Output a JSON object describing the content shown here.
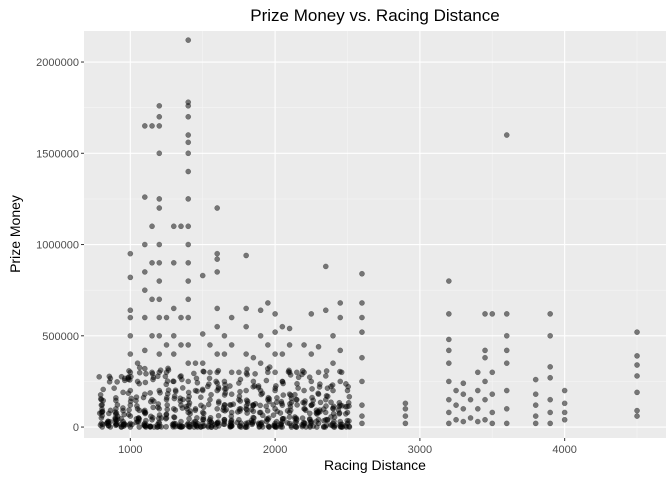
{
  "chart_data": {
    "type": "scatter",
    "title": "Prize Money vs. Racing Distance",
    "xlabel": "Racing Distance",
    "ylabel": "Prize Money",
    "xlim": [
      680,
      4700
    ],
    "ylim": [
      -60000,
      2170000
    ],
    "x_ticks": [
      1000,
      2000,
      3000,
      4000
    ],
    "x_tick_labels": [
      "1000",
      "2000",
      "3000",
      "4000"
    ],
    "y_ticks": [
      0,
      500000,
      1000000,
      1500000,
      2000000
    ],
    "y_tick_labels": [
      "0",
      "500000",
      "1000000",
      "1500000",
      "2000000"
    ],
    "grid": true,
    "background": "#ebebeb",
    "point_color": "#000000",
    "point_opacity": 0.5,
    "points": [
      [
        800,
        20000
      ],
      [
        800,
        50000
      ],
      [
        800,
        80000
      ],
      [
        800,
        120000
      ],
      [
        800,
        150000
      ],
      [
        900,
        10000
      ],
      [
        900,
        40000
      ],
      [
        900,
        70000
      ],
      [
        900,
        100000
      ],
      [
        900,
        160000
      ],
      [
        950,
        30000
      ],
      [
        950,
        90000
      ],
      [
        950,
        190000
      ],
      [
        1000,
        20000
      ],
      [
        1000,
        60000
      ],
      [
        1000,
        120000
      ],
      [
        1000,
        200000
      ],
      [
        1000,
        300000
      ],
      [
        1000,
        400000
      ],
      [
        1000,
        500000
      ],
      [
        1000,
        600000
      ],
      [
        1000,
        640000
      ],
      [
        1000,
        820000
      ],
      [
        1000,
        950000
      ],
      [
        1050,
        30000
      ],
      [
        1050,
        100000
      ],
      [
        1050,
        250000
      ],
      [
        1050,
        350000
      ],
      [
        1100,
        20000
      ],
      [
        1100,
        80000
      ],
      [
        1100,
        180000
      ],
      [
        1100,
        320000
      ],
      [
        1100,
        420000
      ],
      [
        1100,
        600000
      ],
      [
        1100,
        750000
      ],
      [
        1100,
        850000
      ],
      [
        1100,
        1000000
      ],
      [
        1100,
        1260000
      ],
      [
        1100,
        1650000
      ],
      [
        1150,
        40000
      ],
      [
        1150,
        150000
      ],
      [
        1150,
        300000
      ],
      [
        1150,
        500000
      ],
      [
        1150,
        700000
      ],
      [
        1150,
        900000
      ],
      [
        1150,
        1100000
      ],
      [
        1150,
        1650000
      ],
      [
        1200,
        20000
      ],
      [
        1200,
        100000
      ],
      [
        1200,
        200000
      ],
      [
        1200,
        300000
      ],
      [
        1200,
        400000
      ],
      [
        1200,
        500000
      ],
      [
        1200,
        600000
      ],
      [
        1200,
        700000
      ],
      [
        1200,
        800000
      ],
      [
        1200,
        900000
      ],
      [
        1200,
        1000000
      ],
      [
        1200,
        1200000
      ],
      [
        1200,
        1250000
      ],
      [
        1200,
        1500000
      ],
      [
        1200,
        1650000
      ],
      [
        1200,
        1700000
      ],
      [
        1200,
        1760000
      ],
      [
        1250,
        50000
      ],
      [
        1250,
        150000
      ],
      [
        1250,
        300000
      ],
      [
        1250,
        450000
      ],
      [
        1250,
        600000
      ],
      [
        1300,
        20000
      ],
      [
        1300,
        100000
      ],
      [
        1300,
        250000
      ],
      [
        1300,
        400000
      ],
      [
        1300,
        500000
      ],
      [
        1300,
        650000
      ],
      [
        1300,
        900000
      ],
      [
        1300,
        1100000
      ],
      [
        1350,
        30000
      ],
      [
        1350,
        120000
      ],
      [
        1350,
        280000
      ],
      [
        1350,
        450000
      ],
      [
        1350,
        600000
      ],
      [
        1350,
        1100000
      ],
      [
        1400,
        20000
      ],
      [
        1400,
        80000
      ],
      [
        1400,
        150000
      ],
      [
        1400,
        250000
      ],
      [
        1400,
        350000
      ],
      [
        1400,
        450000
      ],
      [
        1400,
        600000
      ],
      [
        1400,
        700000
      ],
      [
        1400,
        800000
      ],
      [
        1400,
        900000
      ],
      [
        1400,
        1000000
      ],
      [
        1400,
        1100000
      ],
      [
        1400,
        1250000
      ],
      [
        1400,
        1400000
      ],
      [
        1400,
        1500000
      ],
      [
        1400,
        1560000
      ],
      [
        1400,
        1600000
      ],
      [
        1400,
        1700000
      ],
      [
        1400,
        1760000
      ],
      [
        1400,
        1780000
      ],
      [
        1400,
        2120000
      ],
      [
        1450,
        30000
      ],
      [
        1450,
        100000
      ],
      [
        1450,
        200000
      ],
      [
        1450,
        350000
      ],
      [
        1500,
        20000
      ],
      [
        1500,
        80000
      ],
      [
        1500,
        200000
      ],
      [
        1500,
        350000
      ],
      [
        1500,
        510000
      ],
      [
        1500,
        830000
      ],
      [
        1550,
        40000
      ],
      [
        1550,
        150000
      ],
      [
        1550,
        300000
      ],
      [
        1550,
        450000
      ],
      [
        1600,
        20000
      ],
      [
        1600,
        100000
      ],
      [
        1600,
        200000
      ],
      [
        1600,
        300000
      ],
      [
        1600,
        400000
      ],
      [
        1600,
        550000
      ],
      [
        1600,
        650000
      ],
      [
        1600,
        850000
      ],
      [
        1600,
        920000
      ],
      [
        1600,
        950000
      ],
      [
        1600,
        1200000
      ],
      [
        1650,
        30000
      ],
      [
        1650,
        120000
      ],
      [
        1650,
        250000
      ],
      [
        1650,
        400000
      ],
      [
        1650,
        500000
      ],
      [
        1700,
        20000
      ],
      [
        1700,
        80000
      ],
      [
        1700,
        180000
      ],
      [
        1700,
        300000
      ],
      [
        1700,
        450000
      ],
      [
        1700,
        600000
      ],
      [
        1750,
        40000
      ],
      [
        1750,
        150000
      ],
      [
        1750,
        300000
      ],
      [
        1800,
        20000
      ],
      [
        1800,
        100000
      ],
      [
        1800,
        200000
      ],
      [
        1800,
        400000
      ],
      [
        1800,
        550000
      ],
      [
        1800,
        650000
      ],
      [
        1800,
        940000
      ],
      [
        1850,
        30000
      ],
      [
        1850,
        120000
      ],
      [
        1850,
        250000
      ],
      [
        1850,
        380000
      ],
      [
        1900,
        20000
      ],
      [
        1900,
        80000
      ],
      [
        1900,
        200000
      ],
      [
        1900,
        350000
      ],
      [
        1900,
        500000
      ],
      [
        1900,
        640000
      ],
      [
        1950,
        40000
      ],
      [
        1950,
        150000
      ],
      [
        1950,
        300000
      ],
      [
        1950,
        450000
      ],
      [
        1950,
        680000
      ],
      [
        2000,
        20000
      ],
      [
        2000,
        100000
      ],
      [
        2000,
        200000
      ],
      [
        2000,
        300000
      ],
      [
        2000,
        400000
      ],
      [
        2000,
        520000
      ],
      [
        2000,
        620000
      ],
      [
        2050,
        30000
      ],
      [
        2050,
        120000
      ],
      [
        2050,
        250000
      ],
      [
        2050,
        400000
      ],
      [
        2050,
        550000
      ],
      [
        2100,
        20000
      ],
      [
        2100,
        80000
      ],
      [
        2100,
        180000
      ],
      [
        2100,
        300000
      ],
      [
        2100,
        450000
      ],
      [
        2100,
        540000
      ],
      [
        2150,
        40000
      ],
      [
        2150,
        150000
      ],
      [
        2150,
        300000
      ],
      [
        2200,
        20000
      ],
      [
        2200,
        100000
      ],
      [
        2200,
        200000
      ],
      [
        2200,
        300000
      ],
      [
        2200,
        450000
      ],
      [
        2250,
        30000
      ],
      [
        2250,
        120000
      ],
      [
        2250,
        250000
      ],
      [
        2250,
        400000
      ],
      [
        2250,
        620000
      ],
      [
        2300,
        20000
      ],
      [
        2300,
        80000
      ],
      [
        2300,
        180000
      ],
      [
        2300,
        300000
      ],
      [
        2300,
        440000
      ],
      [
        2350,
        40000
      ],
      [
        2350,
        150000
      ],
      [
        2350,
        280000
      ],
      [
        2350,
        640000
      ],
      [
        2350,
        880000
      ],
      [
        2400,
        20000
      ],
      [
        2400,
        100000
      ],
      [
        2400,
        200000
      ],
      [
        2400,
        350000
      ],
      [
        2400,
        500000
      ],
      [
        2450,
        30000
      ],
      [
        2450,
        120000
      ],
      [
        2450,
        250000
      ],
      [
        2450,
        420000
      ],
      [
        2450,
        600000
      ],
      [
        2450,
        680000
      ],
      [
        2500,
        20000
      ],
      [
        2500,
        80000
      ],
      [
        2500,
        200000
      ],
      [
        2600,
        20000
      ],
      [
        2600,
        60000
      ],
      [
        2600,
        120000
      ],
      [
        2600,
        250000
      ],
      [
        2600,
        380000
      ],
      [
        2600,
        520000
      ],
      [
        2600,
        600000
      ],
      [
        2600,
        680000
      ],
      [
        2600,
        840000
      ],
      [
        2900,
        20000
      ],
      [
        2900,
        60000
      ],
      [
        2900,
        100000
      ],
      [
        2900,
        130000
      ],
      [
        3200,
        20000
      ],
      [
        3200,
        80000
      ],
      [
        3200,
        150000
      ],
      [
        3200,
        250000
      ],
      [
        3200,
        350000
      ],
      [
        3200,
        420000
      ],
      [
        3200,
        480000
      ],
      [
        3200,
        620000
      ],
      [
        3200,
        800000
      ],
      [
        3250,
        40000
      ],
      [
        3250,
        120000
      ],
      [
        3250,
        200000
      ],
      [
        3300,
        30000
      ],
      [
        3300,
        100000
      ],
      [
        3300,
        180000
      ],
      [
        3300,
        240000
      ],
      [
        3350,
        50000
      ],
      [
        3350,
        150000
      ],
      [
        3400,
        30000
      ],
      [
        3400,
        100000
      ],
      [
        3400,
        200000
      ],
      [
        3400,
        300000
      ],
      [
        3450,
        40000
      ],
      [
        3450,
        150000
      ],
      [
        3450,
        250000
      ],
      [
        3450,
        380000
      ],
      [
        3450,
        420000
      ],
      [
        3450,
        620000
      ],
      [
        3500,
        20000
      ],
      [
        3500,
        80000
      ],
      [
        3500,
        180000
      ],
      [
        3500,
        300000
      ],
      [
        3500,
        620000
      ],
      [
        3600,
        20000
      ],
      [
        3600,
        100000
      ],
      [
        3600,
        200000
      ],
      [
        3600,
        350000
      ],
      [
        3600,
        420000
      ],
      [
        3600,
        500000
      ],
      [
        3600,
        620000
      ],
      [
        3600,
        1600000
      ],
      [
        3800,
        20000
      ],
      [
        3800,
        60000
      ],
      [
        3800,
        120000
      ],
      [
        3800,
        180000
      ],
      [
        3800,
        260000
      ],
      [
        3900,
        20000
      ],
      [
        3900,
        80000
      ],
      [
        3900,
        150000
      ],
      [
        3900,
        270000
      ],
      [
        3900,
        330000
      ],
      [
        3900,
        500000
      ],
      [
        3900,
        620000
      ],
      [
        4000,
        40000
      ],
      [
        4000,
        80000
      ],
      [
        4000,
        130000
      ],
      [
        4000,
        200000
      ],
      [
        4500,
        60000
      ],
      [
        4500,
        90000
      ],
      [
        4500,
        190000
      ],
      [
        4500,
        280000
      ],
      [
        4500,
        340000
      ],
      [
        4500,
        390000
      ],
      [
        4500,
        520000
      ]
    ]
  }
}
